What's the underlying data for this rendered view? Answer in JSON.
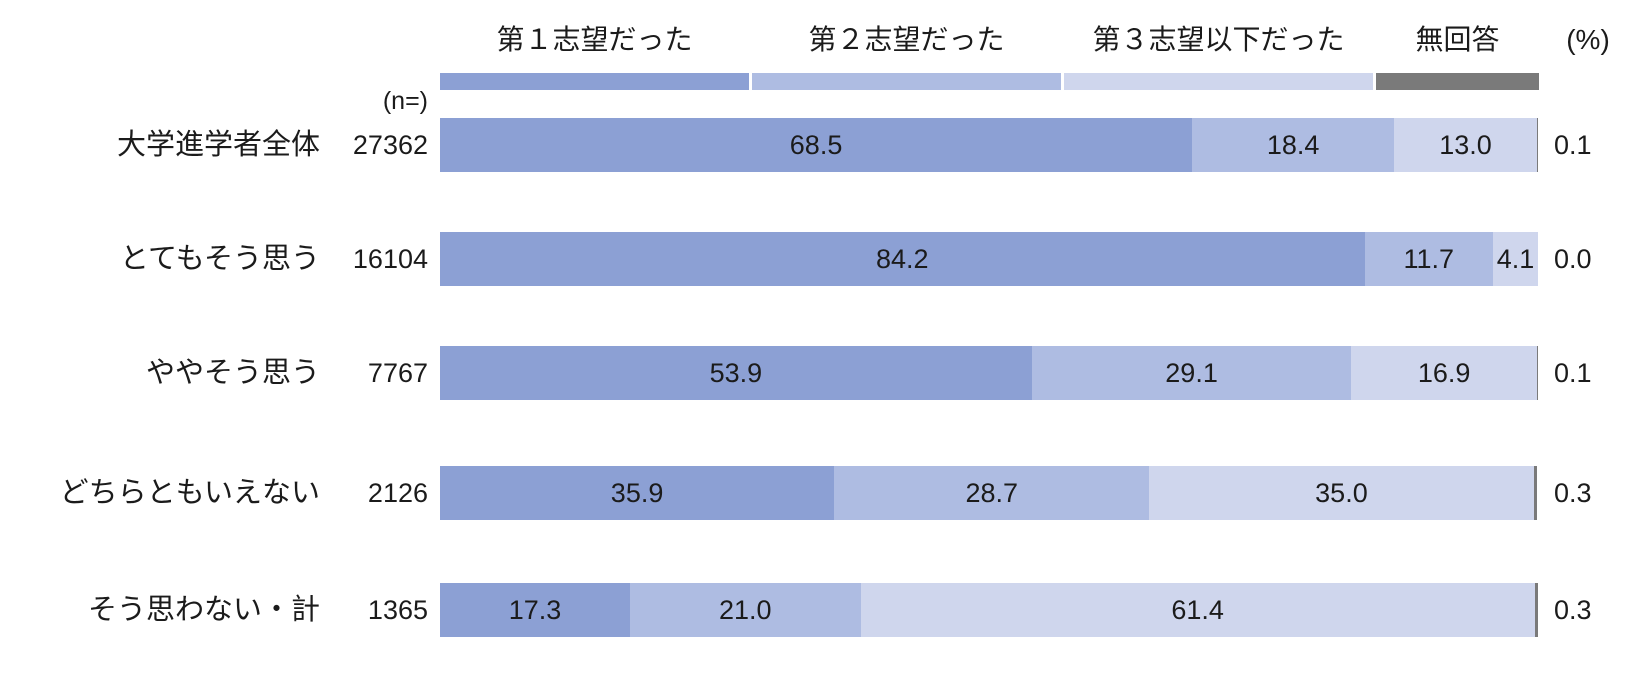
{
  "unit_label": "(%)",
  "n_header": "(n=)",
  "colors": {
    "choice1": "#8CA0D4",
    "choice2": "#AEBCE2",
    "choice3": "#CFD6ED",
    "no_answer": "#7A7A7A"
  },
  "legend": {
    "items": [
      {
        "label": "第１志望だった",
        "color_key": "choice1"
      },
      {
        "label": "第２志望だった",
        "color_key": "choice2"
      },
      {
        "label": "第３志望以下だった",
        "color_key": "choice3"
      },
      {
        "label": "無回答",
        "color_key": "no_answer"
      }
    ]
  },
  "chart_data": {
    "type": "bar",
    "orientation": "horizontal",
    "stacked": true,
    "xlim": [
      0,
      100
    ],
    "unit": "%",
    "grid": false,
    "legend_position": "top",
    "series_names": [
      "第１志望だった",
      "第２志望だった",
      "第３志望以下だった",
      "無回答"
    ],
    "categories": [
      "大学進学者全体",
      "とてもそう思う",
      "ややそう思う",
      "どちらともいえない",
      "そう思わない・計"
    ],
    "rows": [
      {
        "category": "大学進学者全体",
        "n": "27362",
        "values": [
          68.5,
          18.4,
          13.0,
          0.1
        ],
        "labels": [
          "68.5",
          "18.4",
          "13.0",
          "0.1"
        ]
      },
      {
        "category": "とてもそう思う",
        "n": "16104",
        "values": [
          84.2,
          11.7,
          4.1,
          0.0
        ],
        "labels": [
          "84.2",
          "11.7",
          "4.1",
          "0.0"
        ]
      },
      {
        "category": "ややそう思う",
        "n": "7767",
        "values": [
          53.9,
          29.1,
          16.9,
          0.1
        ],
        "labels": [
          "53.9",
          "29.1",
          "16.9",
          "0.1"
        ]
      },
      {
        "category": "どちらともいえない",
        "n": "2126",
        "values": [
          35.9,
          28.7,
          35.0,
          0.3
        ],
        "labels": [
          "35.9",
          "28.7",
          "35.0",
          "0.3"
        ]
      },
      {
        "category": "そう思わない・計",
        "n": "1365",
        "values": [
          17.3,
          21.0,
          61.4,
          0.3
        ],
        "labels": [
          "17.3",
          "21.0",
          "61.4",
          "0.3"
        ]
      }
    ]
  }
}
